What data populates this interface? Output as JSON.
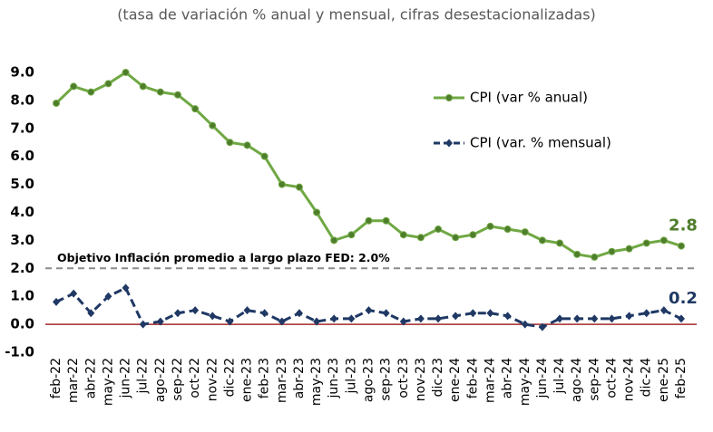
{
  "chart_data": {
    "type": "line",
    "title": "(tasa de variación % anual y mensual, cifras desestacionalizadas)",
    "categories": [
      "feb-22",
      "mar-22",
      "abr-22",
      "may-22",
      "jun-22",
      "jul-22",
      "ago-22",
      "sep-22",
      "oct-22",
      "nov-22",
      "dic-22",
      "ene-23",
      "feb-23",
      "mar-23",
      "abr-23",
      "may-23",
      "jun-23",
      "jul-23",
      "ago-23",
      "sep-23",
      "oct-23",
      "nov-23",
      "dic-23",
      "ene-24",
      "feb-24",
      "mar-24",
      "abr-24",
      "may-24",
      "jun-24",
      "jul-24",
      "ago-24",
      "sep-24",
      "oct-24",
      "nov-24",
      "dic-24",
      "ene-25",
      "feb-25"
    ],
    "series": [
      {
        "name": "CPI (var % anual)",
        "color": "#70a844",
        "marker_color": "#4e7d2c",
        "style": "solid",
        "marker": "circle",
        "values": [
          7.9,
          8.5,
          8.3,
          8.6,
          9.0,
          8.5,
          8.3,
          8.2,
          7.7,
          7.1,
          6.5,
          6.4,
          6.0,
          5.0,
          4.9,
          4.0,
          3.0,
          3.2,
          3.7,
          3.7,
          3.2,
          3.1,
          3.4,
          3.1,
          3.2,
          3.5,
          3.4,
          3.3,
          3.0,
          2.9,
          2.5,
          2.4,
          2.6,
          2.7,
          2.9,
          3.0,
          2.8
        ]
      },
      {
        "name": "CPI (var. % mensual)",
        "color": "#1f3864",
        "marker_color": "#1f3864",
        "style": "dashed",
        "marker": "diamond",
        "values": [
          0.8,
          1.1,
          0.4,
          1.0,
          1.3,
          0.0,
          0.1,
          0.4,
          0.5,
          0.3,
          0.1,
          0.5,
          0.4,
          0.1,
          0.4,
          0.1,
          0.2,
          0.2,
          0.5,
          0.4,
          0.1,
          0.2,
          0.2,
          0.3,
          0.4,
          0.4,
          0.3,
          0.0,
          -0.1,
          0.2,
          0.2,
          0.2,
          0.2,
          0.3,
          0.4,
          0.5,
          0.2
        ]
      }
    ],
    "ylim": [
      -1,
      9.3
    ],
    "yticks": [
      {
        "value": -1,
        "label": "-1.0"
      },
      {
        "value": 0,
        "label": "0.0"
      },
      {
        "value": 1,
        "label": "1.0"
      },
      {
        "value": 2,
        "label": "2.0"
      },
      {
        "value": 3,
        "label": "3.0"
      },
      {
        "value": 4,
        "label": "4.0"
      },
      {
        "value": 5,
        "label": "5.0"
      },
      {
        "value": 6,
        "label": "6.0"
      },
      {
        "value": 7,
        "label": "7.0"
      },
      {
        "value": 8,
        "label": "8.0"
      },
      {
        "value": 9,
        "label": "9.0"
      }
    ],
    "zero_line_color": "#a52a2a",
    "reference_line": {
      "value": 2,
      "label": "Objetivo Inflación promedio a largo plazo FED: 2.0%",
      "color": "#8c8c8c"
    },
    "grid": false,
    "legend": "top-right"
  }
}
